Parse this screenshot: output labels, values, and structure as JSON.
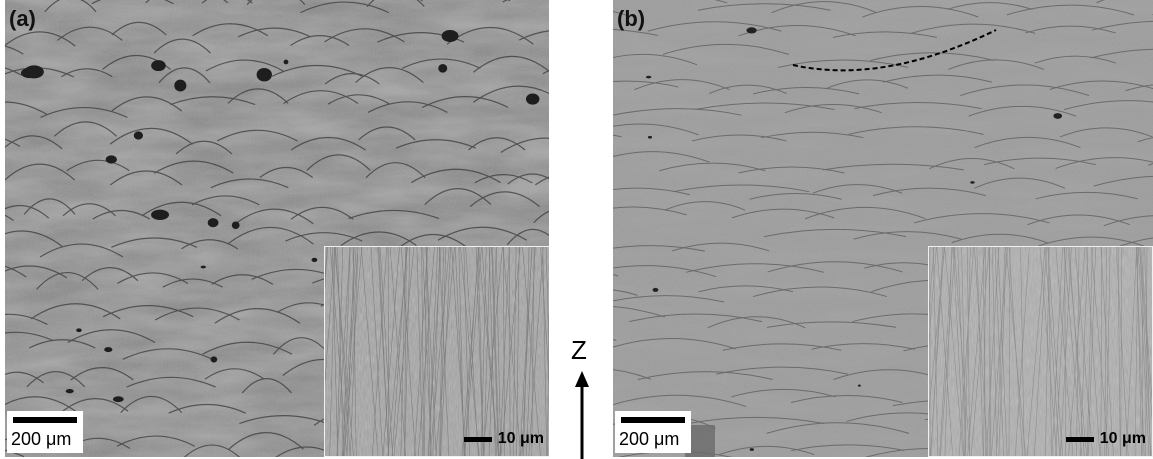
{
  "panel_a": {
    "label": "(a)",
    "scale_bar": "200 μm",
    "inset_scale_bar": "10 μm"
  },
  "panel_b": {
    "label": "(b)",
    "scale_bar": "200 μm",
    "inset_scale_bar": "10 μm"
  },
  "build_direction": {
    "label": "Z"
  },
  "colors": {
    "panel_a_tone": "#7a7a7a",
    "panel_b_tone": "#9c9c9c",
    "dashed_trace": "#000000"
  }
}
